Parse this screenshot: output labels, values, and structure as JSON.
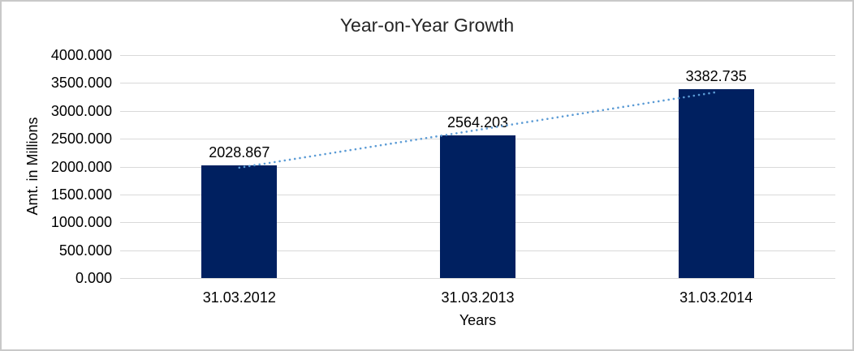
{
  "chart_data": {
    "type": "bar",
    "title": "Year-on-Year Growth",
    "xlabel": "Years",
    "ylabel": "Amt. in Millions",
    "categories": [
      "31.03.2012",
      "31.03.2013",
      "31.03.2014"
    ],
    "values": [
      2028.867,
      2564.203,
      3382.735
    ],
    "data_labels": [
      "2028.867",
      "2564.203",
      "3382.735"
    ],
    "ylim": [
      0,
      4000
    ],
    "ytick_step": 500,
    "ytick_labels": [
      "4000.000",
      "3500.000",
      "3000.000",
      "2500.000",
      "2000.000",
      "1500.000",
      "1000.000",
      "500.000",
      "0.000"
    ],
    "grid": true,
    "legend": false,
    "bar_color": "#002060",
    "gridline_color": "#d9d9d9",
    "trendline": {
      "type": "linear",
      "style": "dotted",
      "color": "#5b9bd5"
    }
  }
}
